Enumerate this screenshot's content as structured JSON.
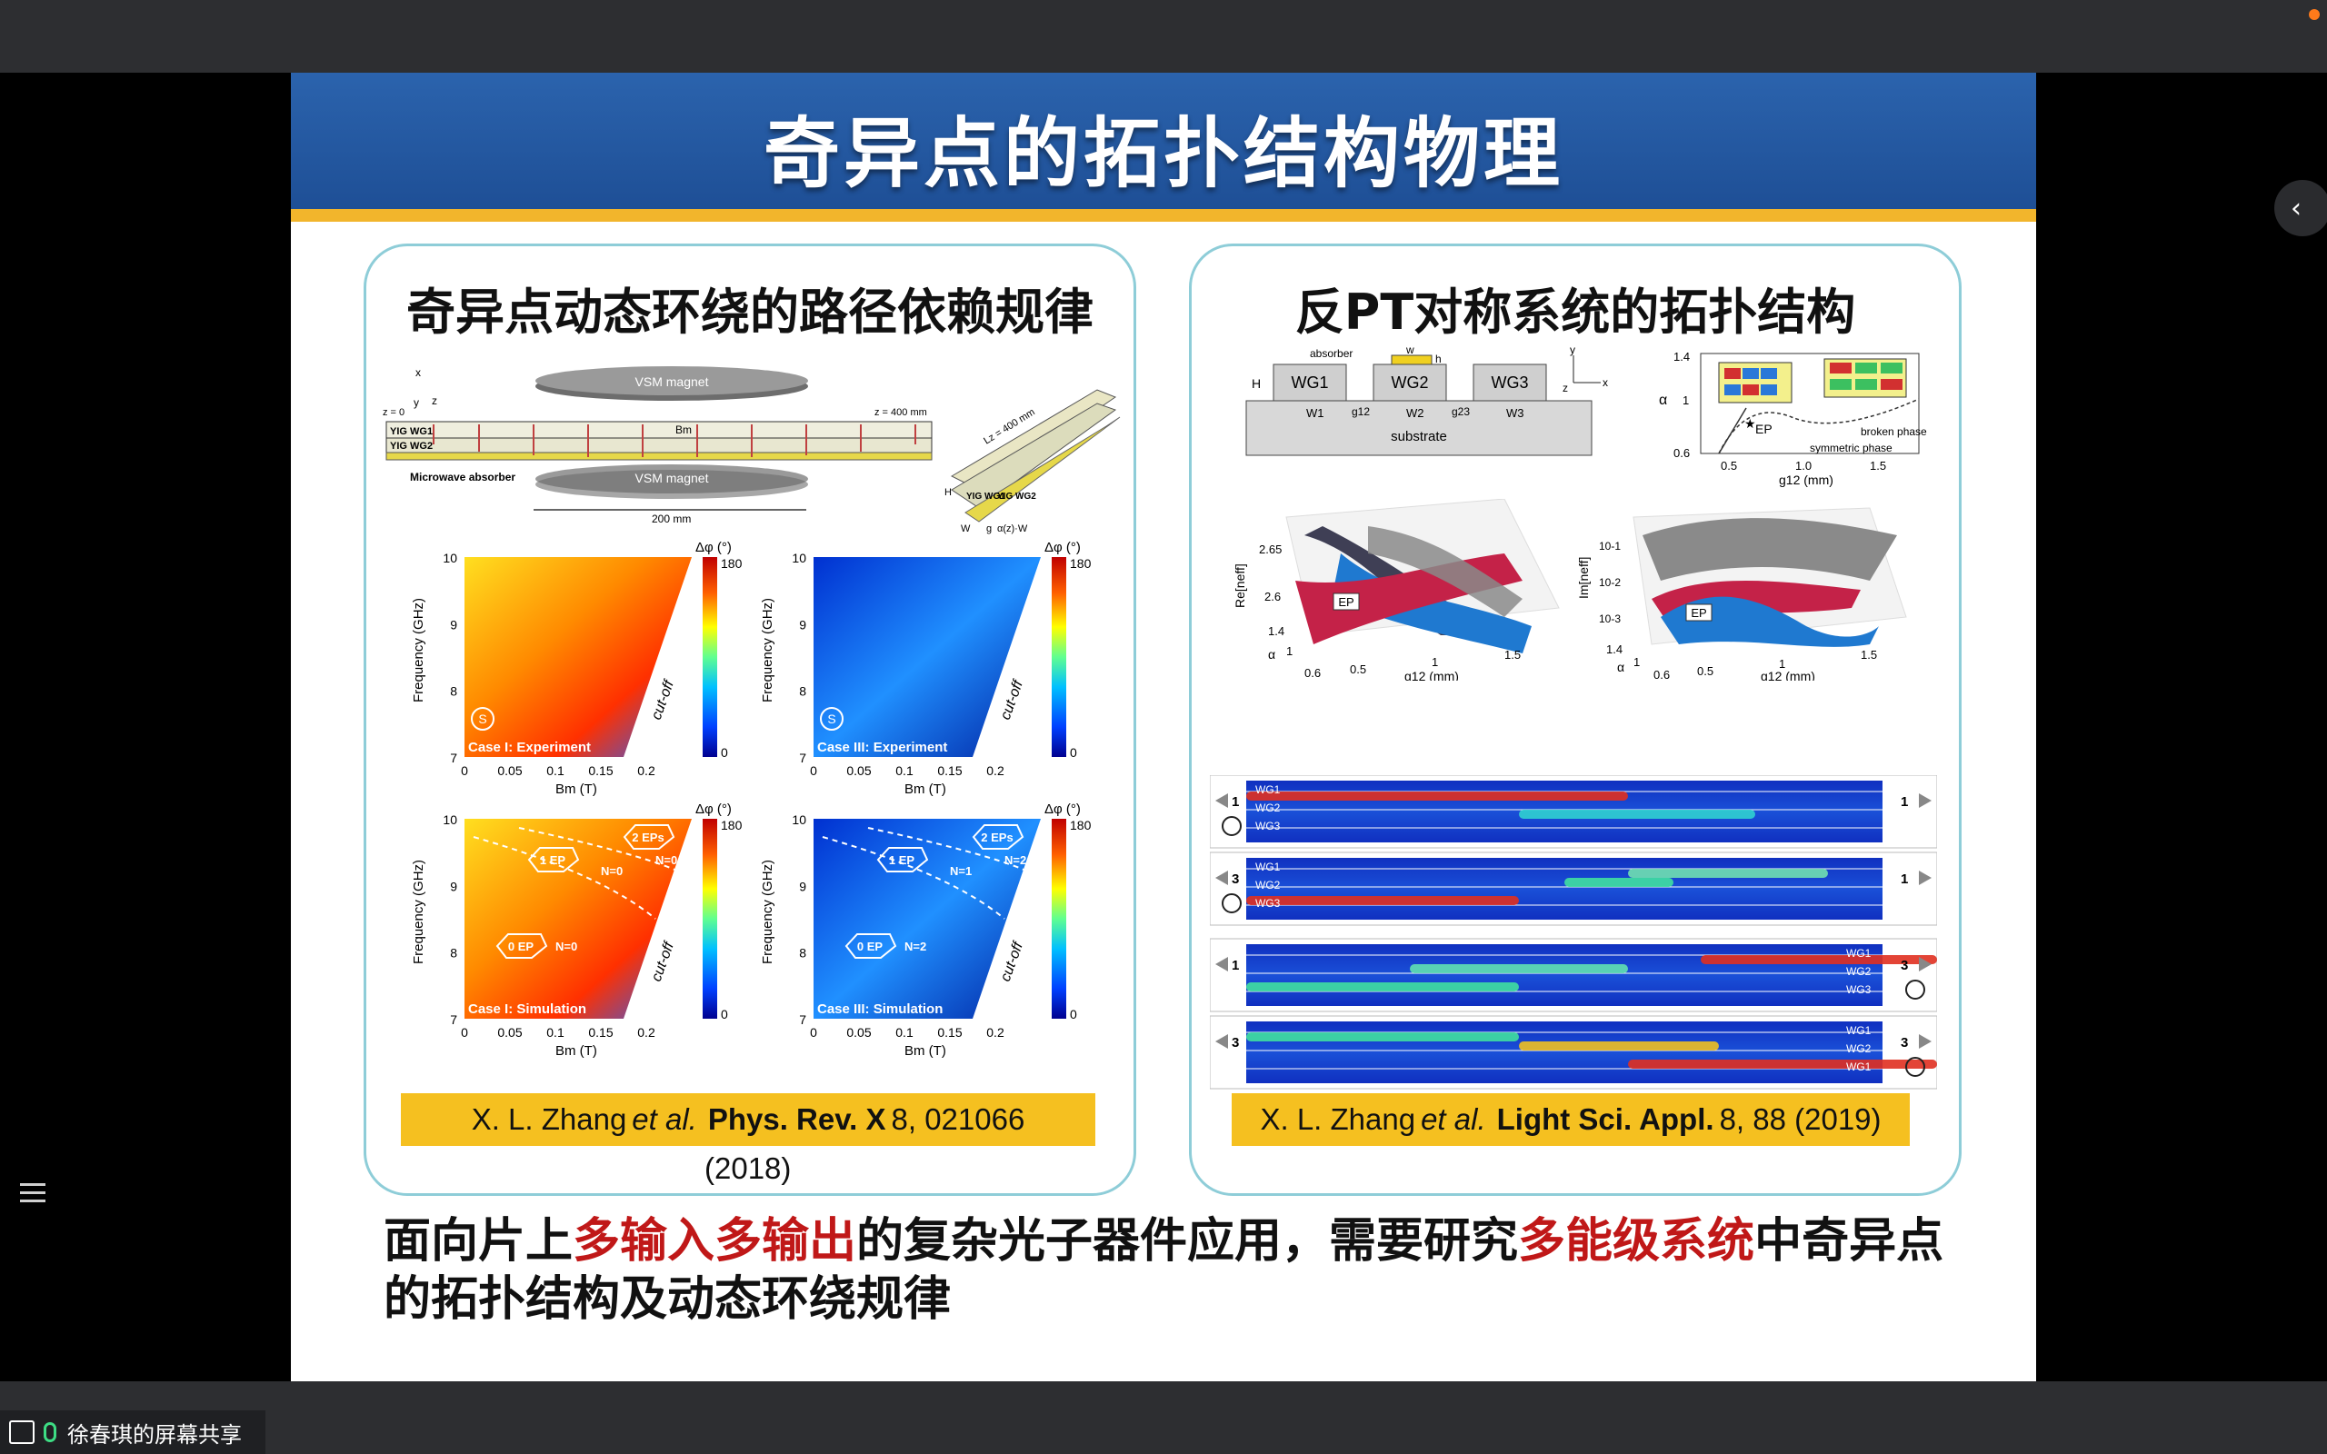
{
  "window": {
    "share_label": "徐春琪的屏幕共享"
  },
  "slide": {
    "title": "奇异点的拓扑结构物理",
    "left_panel": {
      "title": "奇异点动态环绕的路径依赖规律",
      "schematic": {
        "vsm_top": "VSM magnet",
        "vsm_bottom": "VSM magnet",
        "z0": "z = 0",
        "z400": "z = 400 mm",
        "wg1": "YIG WG1",
        "wg2": "YIG WG2",
        "bm": "Bm",
        "absorber": "Microwave absorber",
        "len200": "200 mm",
        "lz": "Lz = 400 mm",
        "x": "x",
        "y": "y",
        "z": "z",
        "h": "H",
        "w": "W",
        "g": "g",
        "aw": "α(z)·W",
        "yig_wg1": "YIG WG1",
        "yig_wg2": "YIG WG2"
      },
      "heatmaps": [
        {
          "case": "Case I: Experiment",
          "cbar_title": "Δφ (°)",
          "cbar_max": "180",
          "cbar_min": "0",
          "cutoff": "cut-off",
          "ylabel": "Frequency (GHz)",
          "xlabel": "Bm (T)",
          "marker": "S"
        },
        {
          "case": "Case III: Experiment",
          "cbar_title": "Δφ (°)",
          "cbar_max": "180",
          "cbar_min": "0",
          "cutoff": "cut-off",
          "ylabel": "Frequency (GHz)",
          "xlabel": "Bm (T)",
          "marker": "S"
        },
        {
          "case": "Case I: Simulation",
          "cbar_title": "Δφ (°)",
          "cbar_max": "180",
          "cbar_min": "0",
          "cutoff": "cut-off",
          "ylabel": "Frequency (GHz)",
          "xlabel": "Bm (T)",
          "ep1": "1 EP",
          "ep2": "2 EPs",
          "ep0": "0 EP",
          "n1": "N=0",
          "n2": "N=0",
          "n0": "N=0"
        },
        {
          "case": "Case III: Simulation",
          "cbar_title": "Δφ (°)",
          "cbar_max": "180",
          "cbar_min": "0",
          "cutoff": "cut-off",
          "ylabel": "Frequency (GHz)",
          "xlabel": "Bm (T)",
          "ep1": "1 EP",
          "ep2": "2 EPs",
          "ep0": "0 EP",
          "n1": "N=1",
          "n2": "N=2",
          "n0": "N=2"
        }
      ],
      "yticks": [
        "10",
        "9",
        "8",
        "7"
      ],
      "xticks": [
        "0",
        "0.05",
        "0.1",
        "0.15",
        "0.2"
      ],
      "citation": {
        "authors": "X. L. Zhang",
        "etal": "et al.",
        "journal": "Phys. Rev. X",
        "rest": "8, 021066",
        "year": "(2018)"
      }
    },
    "right_panel": {
      "title": "反PT对称系统的拓扑结构",
      "schematic": {
        "absorber": "absorber",
        "w": "w",
        "h": "h",
        "H": "H",
        "wg1": "WG1",
        "wg2": "WG2",
        "wg3": "WG3",
        "g12": "g12",
        "g23": "g23",
        "W1": "W1",
        "W2": "W2",
        "W3": "W3",
        "substrate": "substrate",
        "x": "x",
        "y": "y",
        "z": "z"
      },
      "phase": {
        "yticks": [
          "1.4",
          "1",
          "0.6"
        ],
        "xticks": [
          "0.5",
          "1.0",
          "1.5"
        ],
        "ylabel": "α",
        "xlabel": "g12 (mm)",
        "ep": "EP",
        "broken": "broken phase",
        "symmetric": "symmetric phase"
      },
      "surf_re": {
        "zlabel": "Re[neff]",
        "z1": "2.65",
        "z2": "2.6",
        "ep": "EP",
        "a1": "1.4",
        "a2": "1",
        "a3": "0.6",
        "alpha": "α",
        "x1": "0.5",
        "x2": "1",
        "x3": "1.5",
        "xlabel": "g12 (mm)"
      },
      "surf_im": {
        "zlabel": "Im[neff]",
        "z1": "10-1",
        "z2": "10-2",
        "z3": "10-3",
        "ep": "EP",
        "a1": "1.4",
        "a2": "1",
        "a3": "0.6",
        "alpha": "α",
        "x1": "0.5",
        "x2": "1",
        "x3": "1.5",
        "xlabel": "g12 (mm)"
      },
      "strips": [
        {
          "labels": [
            "WG1",
            "WG2",
            "WG3"
          ],
          "in": "1",
          "out": "1"
        },
        {
          "labels": [
            "WG1",
            "WG2",
            "WG3"
          ],
          "in": "3",
          "out": "1"
        },
        {
          "labels": [
            "WG1",
            "WG2",
            "WG3"
          ],
          "in": "1",
          "out": "3"
        },
        {
          "labels": [
            "WG1",
            "WG2",
            "WG1"
          ],
          "in": "3",
          "out": "3"
        }
      ],
      "citation": {
        "authors": "X. L. Zhang",
        "etal": "et al.",
        "journal": "Light Sci. Appl.",
        "rest": "8, 88 (2019)"
      }
    },
    "footer": {
      "part1": "面向片上",
      "highlight1": "多输入多输出",
      "part2": "的复杂光子器件应用，需要研究",
      "highlight2": "多能级系统",
      "part3": "中奇异点的拓扑结构及动态环绕规律"
    }
  },
  "colors": {
    "banner": "#1e4f96",
    "gold": "#f2b52c",
    "panel_border": "#8ecdd8",
    "highlight_red": "#c01818",
    "cite_bg": "#f5c020"
  }
}
